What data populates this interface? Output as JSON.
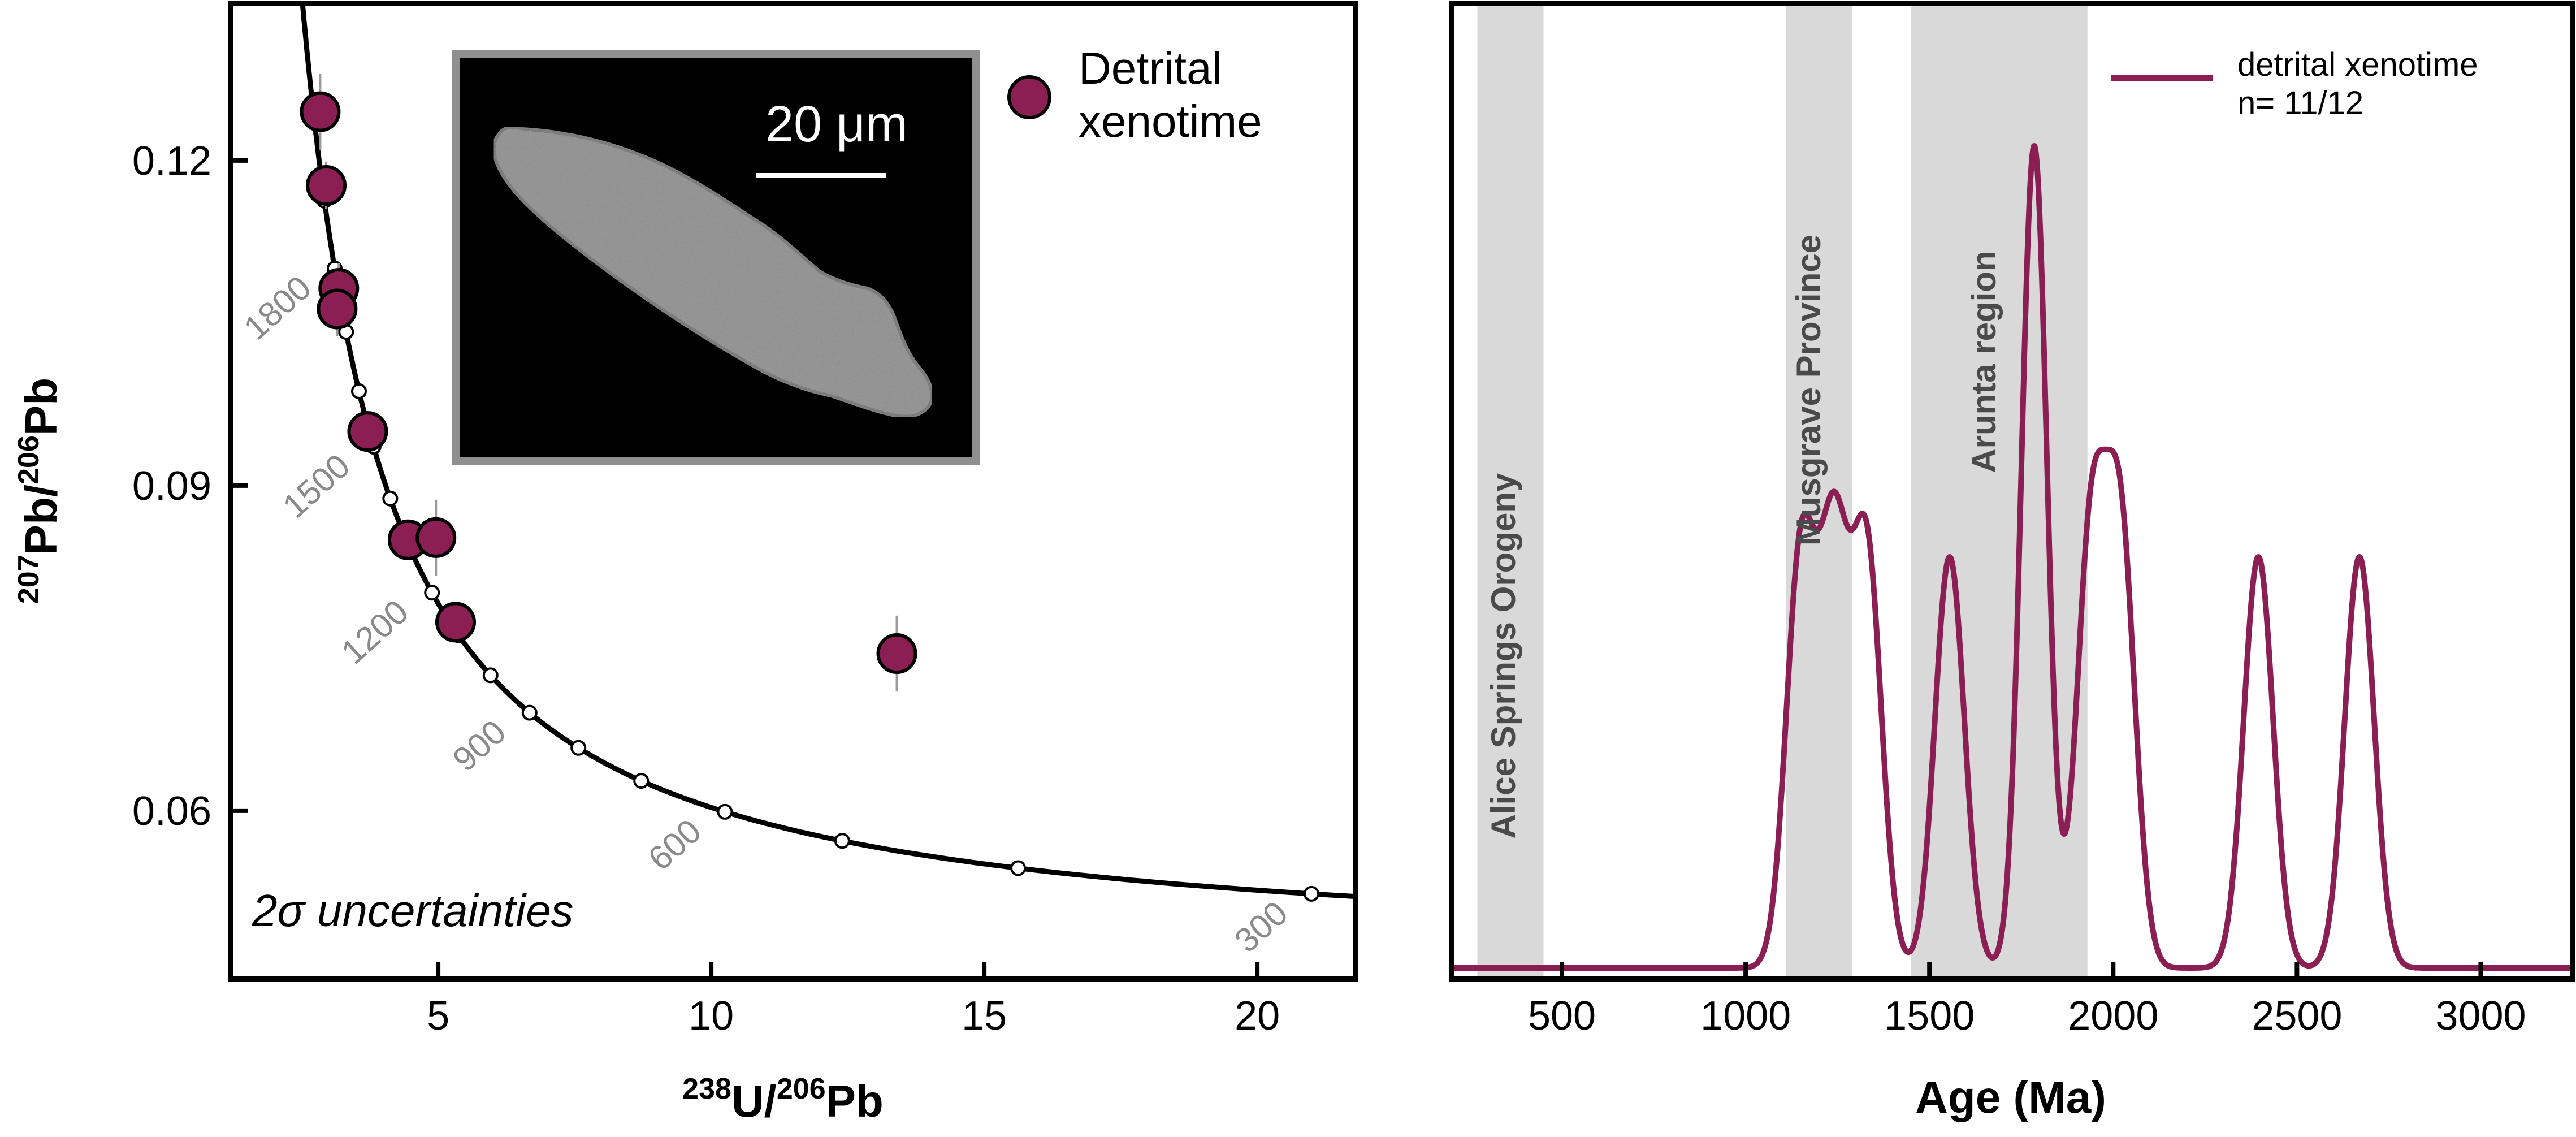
{
  "chart_data": [
    {
      "type": "scatter",
      "xlabel": {
        "base": "U/",
        "sup1": "238",
        "sup2": "206",
        "tail": "Pb"
      },
      "ylabel": {
        "sup1": "207",
        "mid": "Pb/",
        "sup2": "206",
        "tail": "Pb"
      },
      "xlim": [
        1.2,
        21.8
      ],
      "ylim": [
        0.0445,
        0.1345
      ],
      "xticks": [
        5,
        10,
        15,
        20
      ],
      "xtick_labels": [
        "5",
        "10",
        "15",
        "20"
      ],
      "yticks": [
        0.06,
        0.09,
        0.12
      ],
      "ytick_labels": [
        "0.06",
        "0.09",
        "0.12"
      ],
      "legend": {
        "entries": [
          "Detrital",
          "xenotime"
        ],
        "position": "top-right",
        "color": "#8b1e52"
      },
      "annotation": "2σ uncertainties",
      "inset": {
        "scale_bar_label": "20 μm"
      },
      "concordia_age_labels": [
        {
          "age": 1800,
          "label": "1800"
        },
        {
          "age": 1500,
          "label": "1500"
        },
        {
          "age": 1200,
          "label": "1200"
        },
        {
          "age": 900,
          "label": "900"
        },
        {
          "age": 600,
          "label": "600"
        },
        {
          "age": 300,
          "label": "300"
        }
      ],
      "concordia_marker_ages": [
        300,
        400,
        500,
        600,
        700,
        800,
        900,
        1000,
        1100,
        1200,
        1300,
        1400,
        1500,
        1600,
        1700,
        1800,
        1900
      ],
      "concordia_range_ages": [
        150,
        2250
      ],
      "points": [
        {
          "x": 2.84,
          "y": 0.1245,
          "yerr": 0.0035
        },
        {
          "x": 2.95,
          "y": 0.1177,
          "yerr": 0.0022
        },
        {
          "x": 3.18,
          "y": 0.1082,
          "yerr": 0.0023
        },
        {
          "x": 3.15,
          "y": 0.1063,
          "yerr": 0.0025
        },
        {
          "x": 3.71,
          "y": 0.095,
          "yerr": 0.0015
        },
        {
          "x": 4.45,
          "y": 0.085,
          "yerr": 0.0015
        },
        {
          "x": 4.96,
          "y": 0.0852,
          "yerr": 0.0035
        },
        {
          "x": 5.32,
          "y": 0.0774,
          "yerr": 0.0015
        },
        {
          "x": 13.4,
          "y": 0.0745,
          "yerr": 0.0035
        }
      ],
      "point_color": "#8b1e52"
    },
    {
      "type": "line",
      "xlabel": "Age (Ma)",
      "xlim": [
        200,
        3250
      ],
      "ylim": [
        0,
        1.0
      ],
      "xticks": [
        500,
        1000,
        1500,
        2000,
        2500,
        3000
      ],
      "xtick_labels": [
        "500",
        "1000",
        "1500",
        "2000",
        "2500",
        "3000"
      ],
      "legend": {
        "entries": [
          "detrital xenotime",
          "n= 11/12"
        ],
        "position": "top-right",
        "color": "#8b1e52"
      },
      "bands": [
        {
          "label": "Alice Springs Orogeny",
          "x0": 270,
          "x1": 450,
          "color": "#d9d9d9"
        },
        {
          "label": "Musgrave Province",
          "x0": 1110,
          "x1": 1290,
          "color": "#d9d9d9"
        },
        {
          "label": "Arunta region",
          "x0": 1450,
          "x1": 1930,
          "color": "#d9d9d9"
        }
      ],
      "series": [
        {
          "color": "#8b1e52",
          "peaks": [
            {
              "age": 1150,
              "height": 0.5,
              "sigma": 40
            },
            {
              "age": 1240,
              "height": 0.5,
              "sigma": 40
            },
            {
              "age": 1330,
              "height": 0.5,
              "sigma": 40
            },
            {
              "age": 1555,
              "height": 0.5,
              "sigma": 40
            },
            {
              "age": 1785,
              "height": 1.0,
              "sigma": 35
            },
            {
              "age": 1940,
              "height": 0.52,
              "sigma": 40
            },
            {
              "age": 2020,
              "height": 0.52,
              "sigma": 40
            },
            {
              "age": 2395,
              "height": 0.5,
              "sigma": 40
            },
            {
              "age": 2670,
              "height": 0.5,
              "sigma": 40
            }
          ]
        }
      ]
    }
  ]
}
